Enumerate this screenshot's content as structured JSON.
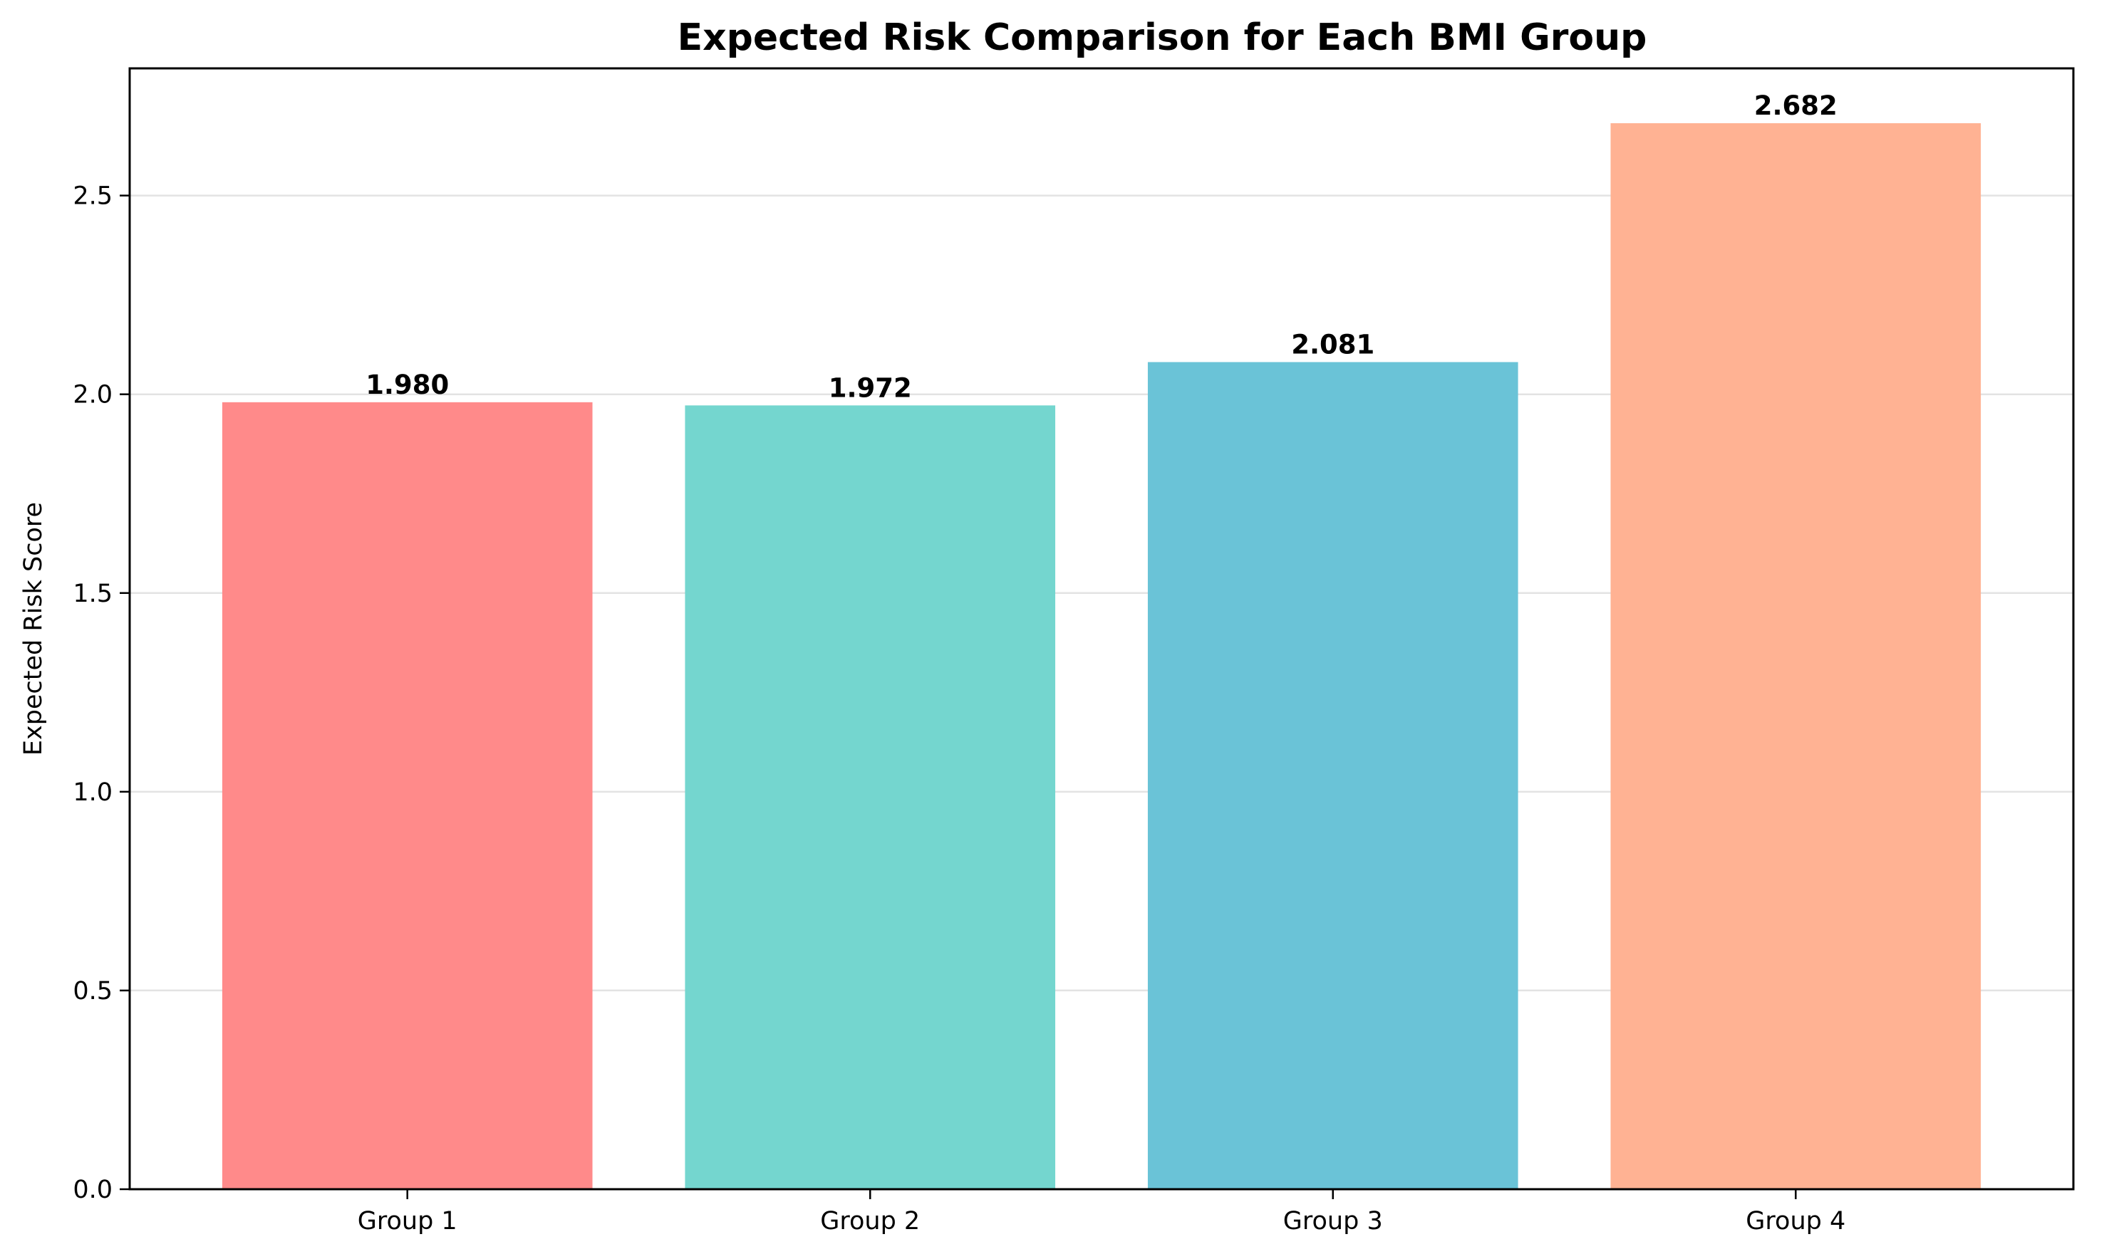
{
  "chart_data": {
    "type": "bar",
    "title": "Expected Risk Comparison for Each BMI Group",
    "xlabel": "",
    "ylabel": "Expected Risk Score",
    "categories": [
      "Group 1",
      "Group 2",
      "Group 3",
      "Group 4"
    ],
    "values": [
      1.98,
      1.972,
      2.081,
      2.682
    ],
    "value_labels": [
      "1.980",
      "1.972",
      "2.081",
      "2.682"
    ],
    "colors": [
      "#ff8a8a",
      "#74d6cf",
      "#6ac3d7",
      "#ffb293"
    ],
    "ylim": [
      0,
      2.82
    ],
    "yticks": [
      0.0,
      0.5,
      1.0,
      1.5,
      2.0,
      2.5
    ],
    "ytick_labels": [
      "0.0",
      "0.5",
      "1.0",
      "1.5",
      "2.0",
      "2.5"
    ],
    "grid": "horizontal",
    "legend": "none"
  }
}
